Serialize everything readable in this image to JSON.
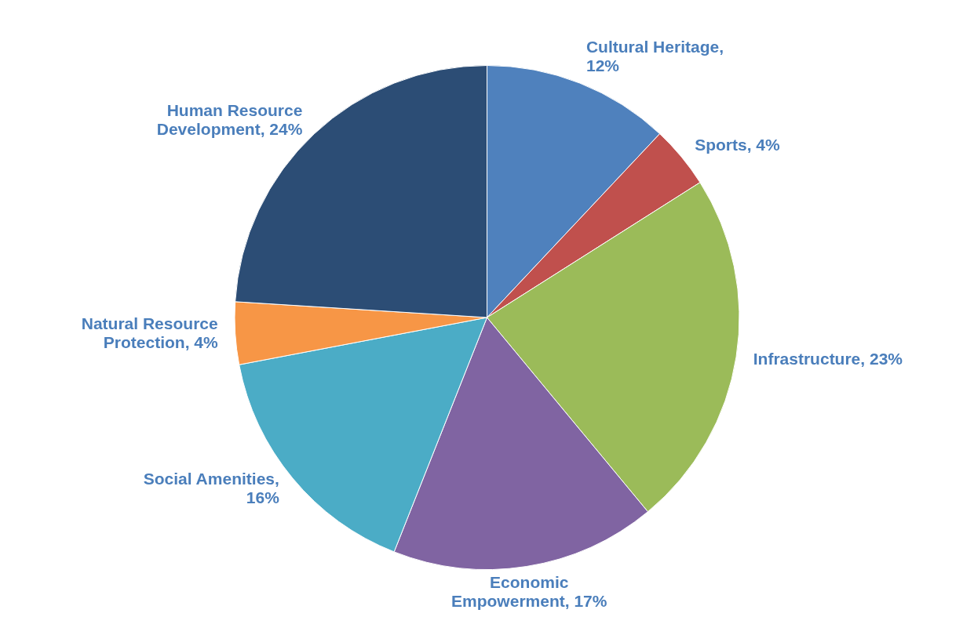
{
  "chart_data": {
    "type": "pie",
    "categories": [
      "Cultural Heritage",
      "Sports",
      "Infrastructure",
      "Economic Empowerment",
      "Social Amenities",
      "Natural Resource Protection",
      "Human Resource Development"
    ],
    "values": [
      12,
      4,
      23,
      17,
      16,
      4,
      24
    ],
    "value_labels": [
      ", 12%",
      ", 4%",
      ", 23%",
      ", 17%",
      ", 16%",
      ", 4%",
      ", 24%"
    ],
    "colors": [
      "#4f81bd",
      "#c0504d",
      "#9bbb59",
      "#8064a2",
      "#4bacc6",
      "#f79646",
      "#2c4d75"
    ],
    "data_labels": true,
    "legend": false
  }
}
